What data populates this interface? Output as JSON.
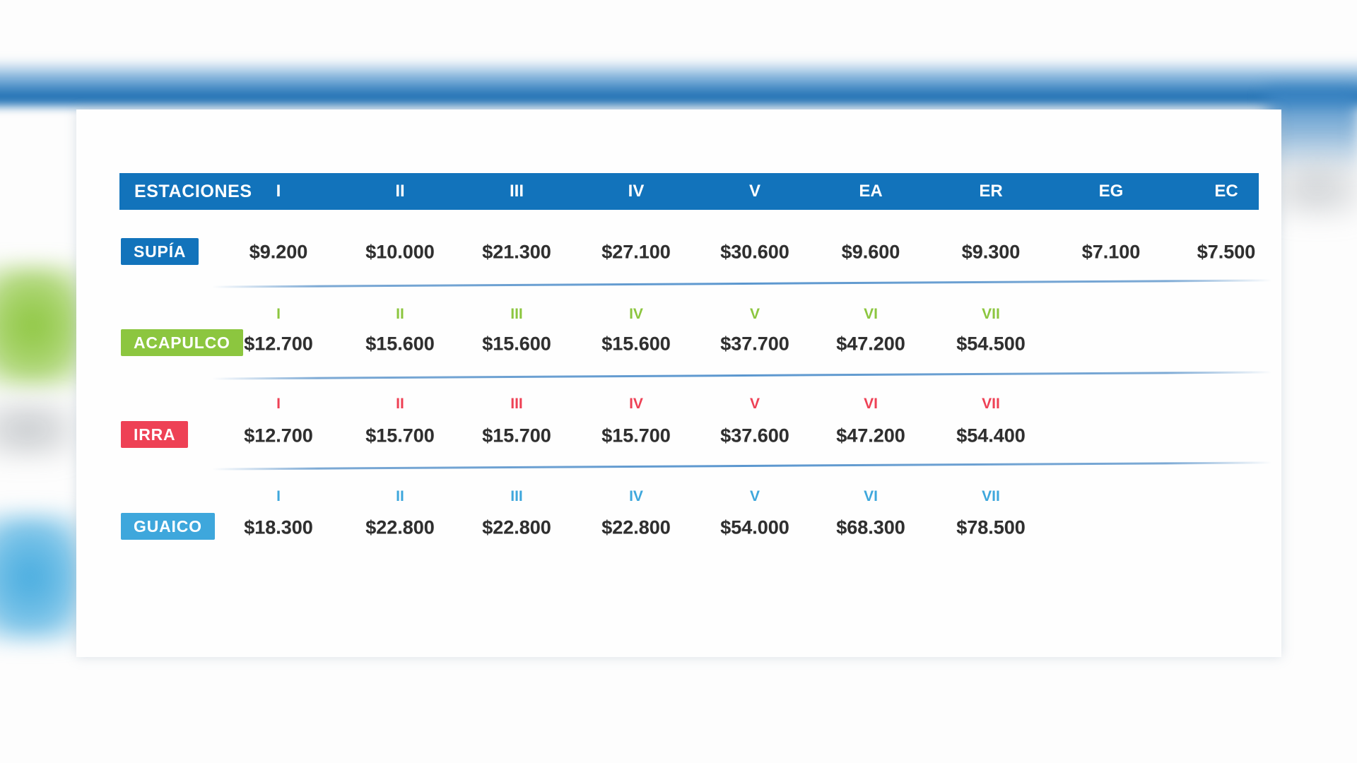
{
  "colors": {
    "header_bar": "#1273bb",
    "header_text": "#ffffff",
    "value_text": "#2f2f2f",
    "divider": "#5b97cf",
    "card_bg": "#fefefe",
    "page_bg": "#ffffff",
    "supia": "#1273bb",
    "acapulco": "#8cc63f",
    "irra": "#ee4155",
    "guaico": "#3ea7dc"
  },
  "chart_data": {
    "type": "table",
    "header_label": "ESTACIONES",
    "header_columns": [
      "I",
      "II",
      "III",
      "IV",
      "V",
      "EA",
      "ER",
      "EG",
      "EC"
    ],
    "rows": [
      {
        "station": "SUPÍA",
        "color": "#1273bb",
        "sub_columns": [],
        "values": [
          "$9.200",
          "$10.000",
          "$21.300",
          "$27.100",
          "$30.600",
          "$9.600",
          "$9.300",
          "$7.100",
          "$7.500"
        ]
      },
      {
        "station": "ACAPULCO",
        "color": "#8cc63f",
        "sub_columns": [
          "I",
          "II",
          "III",
          "IV",
          "V",
          "VI",
          "VII"
        ],
        "values": [
          "$12.700",
          "$15.600",
          "$15.600",
          "$15.600",
          "$37.700",
          "$47.200",
          "$54.500"
        ]
      },
      {
        "station": "IRRA",
        "color": "#ee4155",
        "sub_columns": [
          "I",
          "II",
          "III",
          "IV",
          "V",
          "VI",
          "VII"
        ],
        "values": [
          "$12.700",
          "$15.700",
          "$15.700",
          "$15.700",
          "$37.600",
          "$47.200",
          "$54.400"
        ]
      },
      {
        "station": "GUAICO",
        "color": "#3ea7dc",
        "sub_columns": [
          "I",
          "II",
          "III",
          "IV",
          "V",
          "VI",
          "VII"
        ],
        "values": [
          "$18.300",
          "$22.800",
          "$22.800",
          "$22.800",
          "$54.000",
          "$68.300",
          "$78.500"
        ]
      }
    ]
  }
}
